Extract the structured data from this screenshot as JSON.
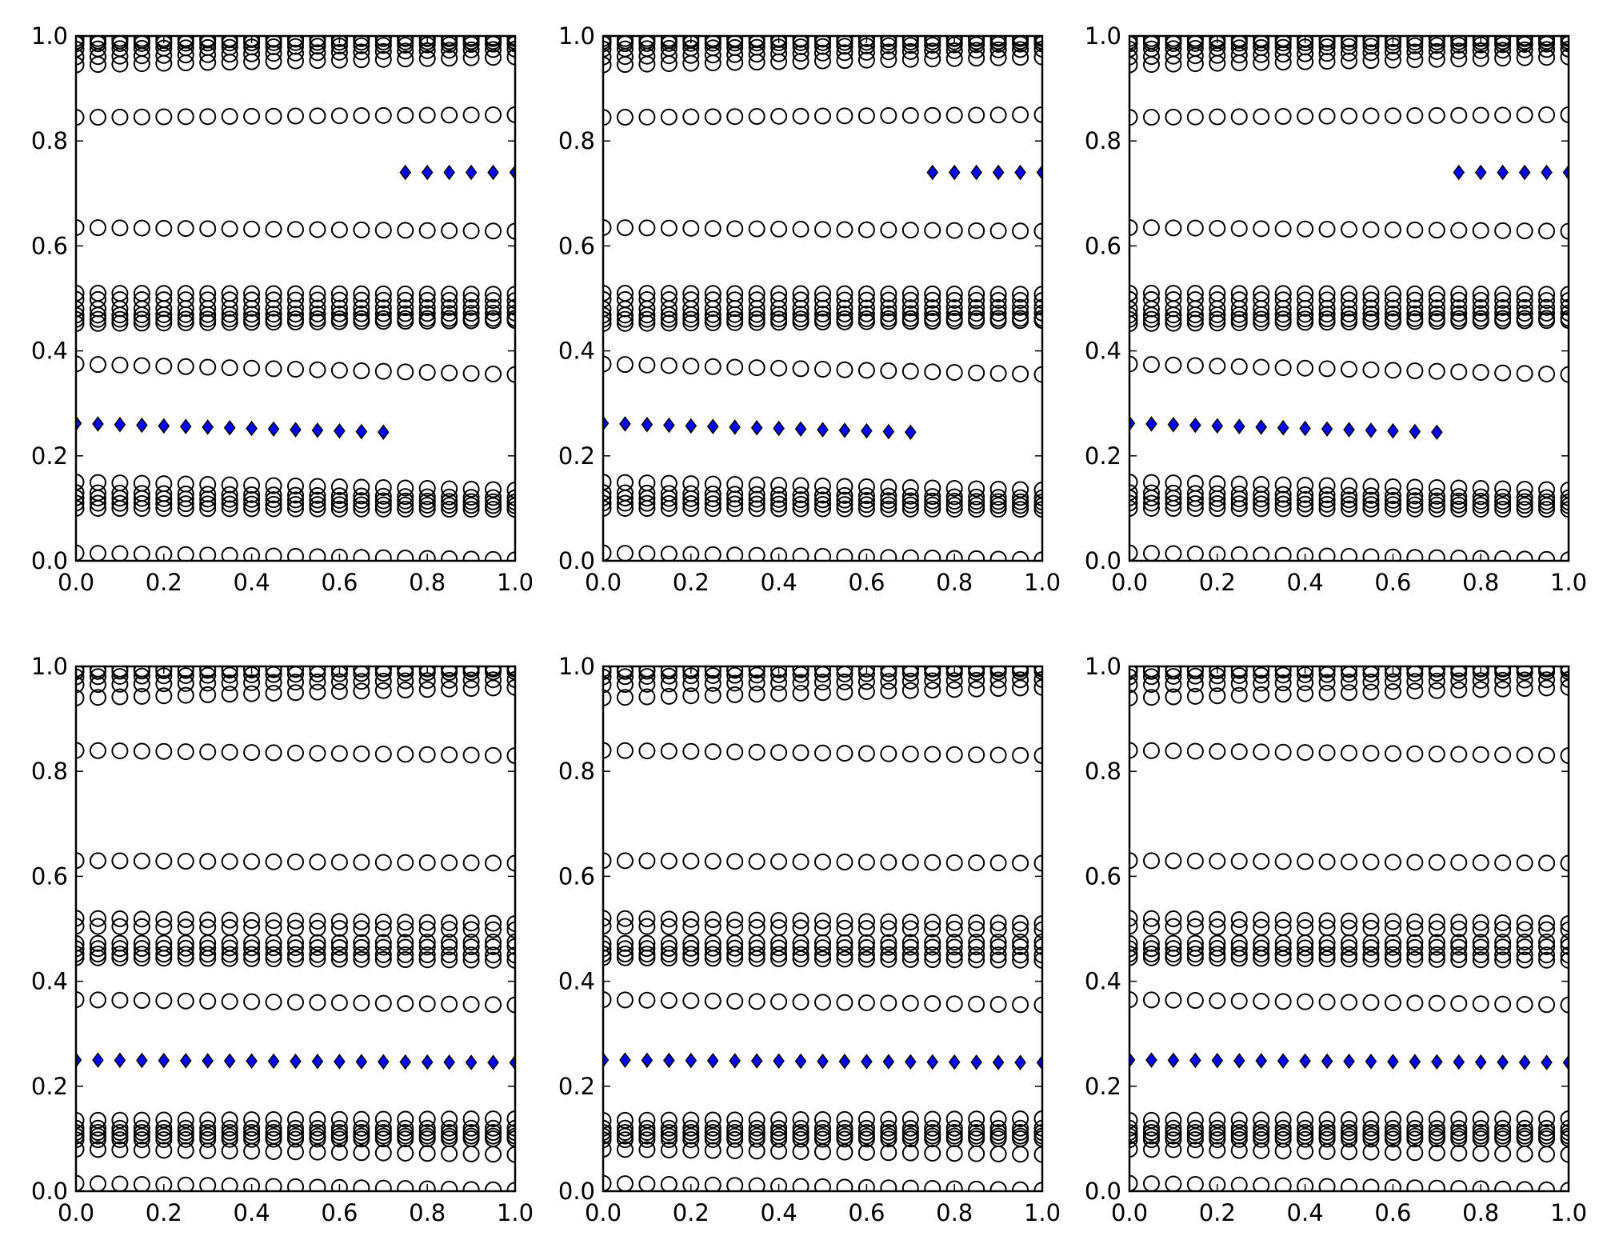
{
  "chart_data": {
    "type": "scatter",
    "subplot_grid": [
      2,
      3
    ],
    "xlim": [
      0,
      1
    ],
    "ylim": [
      0,
      1
    ],
    "xticks": [
      "0.0",
      "0.2",
      "0.4",
      "0.6",
      "0.8",
      "1.0"
    ],
    "yticks": [
      "0.0",
      "0.2",
      "0.4",
      "0.6",
      "0.8",
      "1.0"
    ],
    "grid": false,
    "legend": false,
    "x": [
      0.0,
      0.05,
      0.1,
      0.15,
      0.2,
      0.25,
      0.3,
      0.35,
      0.4,
      0.45,
      0.5,
      0.55,
      0.6,
      0.65,
      0.7,
      0.75,
      0.8,
      0.85,
      0.9,
      0.95,
      1.0
    ],
    "colors": {
      "circle_edge": "#000000",
      "circle_fill": "none",
      "diamond_fill": "#0000ff",
      "diamond_edge": "#000000",
      "axes": "#000000"
    },
    "panels": [
      {
        "row": 0,
        "col": 0,
        "circle_rows": [
          {
            "start": 0.995,
            "end": 0.995
          },
          {
            "start": 0.99,
            "end": 0.998
          },
          {
            "start": 0.985,
            "end": 0.99
          },
          {
            "start": 0.975,
            "end": 0.985
          },
          {
            "start": 0.96,
            "end": 0.975
          },
          {
            "start": 0.945,
            "end": 0.96
          },
          {
            "start": 0.845,
            "end": 0.85
          },
          {
            "start": 0.635,
            "end": 0.628
          },
          {
            "start": 0.51,
            "end": 0.508
          },
          {
            "start": 0.498,
            "end": 0.496
          },
          {
            "start": 0.48,
            "end": 0.483
          },
          {
            "start": 0.468,
            "end": 0.472
          },
          {
            "start": 0.46,
            "end": 0.462
          },
          {
            "start": 0.452,
            "end": 0.458
          },
          {
            "start": 0.375,
            "end": 0.355
          },
          {
            "start": 0.15,
            "end": 0.135
          },
          {
            "start": 0.13,
            "end": 0.12
          },
          {
            "start": 0.12,
            "end": 0.112
          },
          {
            "start": 0.11,
            "end": 0.105
          },
          {
            "start": 0.1,
            "end": 0.098
          },
          {
            "start": 0.015,
            "end": 0.002
          }
        ],
        "diamonds": {
          "low": {
            "x_from": 0.0,
            "x_to": 0.7,
            "start": 0.262,
            "end": 0.245
          },
          "high": {
            "x_from": 0.75,
            "x_to": 1.0,
            "start": 0.74,
            "end": 0.74
          }
        }
      },
      {
        "row": 0,
        "col": 1,
        "circle_rows": [
          {
            "start": 0.995,
            "end": 0.995
          },
          {
            "start": 0.99,
            "end": 0.998
          },
          {
            "start": 0.985,
            "end": 0.99
          },
          {
            "start": 0.975,
            "end": 0.985
          },
          {
            "start": 0.96,
            "end": 0.975
          },
          {
            "start": 0.945,
            "end": 0.96
          },
          {
            "start": 0.845,
            "end": 0.85
          },
          {
            "start": 0.635,
            "end": 0.628
          },
          {
            "start": 0.51,
            "end": 0.508
          },
          {
            "start": 0.498,
            "end": 0.496
          },
          {
            "start": 0.48,
            "end": 0.483
          },
          {
            "start": 0.468,
            "end": 0.472
          },
          {
            "start": 0.46,
            "end": 0.462
          },
          {
            "start": 0.452,
            "end": 0.458
          },
          {
            "start": 0.375,
            "end": 0.355
          },
          {
            "start": 0.15,
            "end": 0.135
          },
          {
            "start": 0.13,
            "end": 0.12
          },
          {
            "start": 0.12,
            "end": 0.112
          },
          {
            "start": 0.11,
            "end": 0.105
          },
          {
            "start": 0.1,
            "end": 0.098
          },
          {
            "start": 0.015,
            "end": 0.002
          }
        ],
        "diamonds": {
          "low": {
            "x_from": 0.0,
            "x_to": 0.7,
            "start": 0.262,
            "end": 0.245
          },
          "high": {
            "x_from": 0.75,
            "x_to": 1.0,
            "start": 0.74,
            "end": 0.74
          }
        }
      },
      {
        "row": 0,
        "col": 2,
        "circle_rows": [
          {
            "start": 0.995,
            "end": 0.995
          },
          {
            "start": 0.99,
            "end": 0.998
          },
          {
            "start": 0.985,
            "end": 0.99
          },
          {
            "start": 0.975,
            "end": 0.985
          },
          {
            "start": 0.96,
            "end": 0.975
          },
          {
            "start": 0.945,
            "end": 0.96
          },
          {
            "start": 0.845,
            "end": 0.85
          },
          {
            "start": 0.635,
            "end": 0.628
          },
          {
            "start": 0.51,
            "end": 0.508
          },
          {
            "start": 0.498,
            "end": 0.496
          },
          {
            "start": 0.48,
            "end": 0.483
          },
          {
            "start": 0.468,
            "end": 0.472
          },
          {
            "start": 0.46,
            "end": 0.462
          },
          {
            "start": 0.452,
            "end": 0.458
          },
          {
            "start": 0.375,
            "end": 0.355
          },
          {
            "start": 0.15,
            "end": 0.135
          },
          {
            "start": 0.13,
            "end": 0.12
          },
          {
            "start": 0.12,
            "end": 0.112
          },
          {
            "start": 0.11,
            "end": 0.105
          },
          {
            "start": 0.1,
            "end": 0.098
          },
          {
            "start": 0.015,
            "end": 0.002
          }
        ],
        "diamonds": {
          "low": {
            "x_from": 0.0,
            "x_to": 0.7,
            "start": 0.262,
            "end": 0.245
          },
          "high": {
            "x_from": 0.75,
            "x_to": 1.0,
            "start": 0.74,
            "end": 0.74
          }
        }
      },
      {
        "row": 1,
        "col": 0,
        "circle_rows": [
          {
            "start": 0.995,
            "end": 0.995
          },
          {
            "start": 0.99,
            "end": 0.998
          },
          {
            "start": 0.98,
            "end": 0.99
          },
          {
            "start": 0.965,
            "end": 0.975
          },
          {
            "start": 0.94,
            "end": 0.96
          },
          {
            "start": 0.84,
            "end": 0.83
          },
          {
            "start": 0.63,
            "end": 0.625
          },
          {
            "start": 0.52,
            "end": 0.51
          },
          {
            "start": 0.505,
            "end": 0.498
          },
          {
            "start": 0.472,
            "end": 0.475
          },
          {
            "start": 0.462,
            "end": 0.466
          },
          {
            "start": 0.452,
            "end": 0.45
          },
          {
            "start": 0.445,
            "end": 0.44
          },
          {
            "start": 0.365,
            "end": 0.355
          },
          {
            "start": 0.135,
            "end": 0.138
          },
          {
            "start": 0.12,
            "end": 0.12
          },
          {
            "start": 0.112,
            "end": 0.112
          },
          {
            "start": 0.105,
            "end": 0.105
          },
          {
            "start": 0.098,
            "end": 0.1
          },
          {
            "start": 0.08,
            "end": 0.07
          },
          {
            "start": 0.015,
            "end": 0.002
          }
        ],
        "diamonds": {
          "all": {
            "x_from": 0.0,
            "x_to": 1.0,
            "start": 0.25,
            "end": 0.245
          }
        }
      },
      {
        "row": 1,
        "col": 1,
        "circle_rows": [
          {
            "start": 0.995,
            "end": 0.995
          },
          {
            "start": 0.99,
            "end": 0.998
          },
          {
            "start": 0.98,
            "end": 0.99
          },
          {
            "start": 0.965,
            "end": 0.975
          },
          {
            "start": 0.94,
            "end": 0.96
          },
          {
            "start": 0.84,
            "end": 0.83
          },
          {
            "start": 0.63,
            "end": 0.625
          },
          {
            "start": 0.52,
            "end": 0.51
          },
          {
            "start": 0.505,
            "end": 0.498
          },
          {
            "start": 0.472,
            "end": 0.475
          },
          {
            "start": 0.462,
            "end": 0.466
          },
          {
            "start": 0.452,
            "end": 0.45
          },
          {
            "start": 0.445,
            "end": 0.44
          },
          {
            "start": 0.365,
            "end": 0.355
          },
          {
            "start": 0.135,
            "end": 0.138
          },
          {
            "start": 0.12,
            "end": 0.12
          },
          {
            "start": 0.112,
            "end": 0.112
          },
          {
            "start": 0.105,
            "end": 0.105
          },
          {
            "start": 0.098,
            "end": 0.1
          },
          {
            "start": 0.08,
            "end": 0.07
          },
          {
            "start": 0.015,
            "end": 0.002
          }
        ],
        "diamonds": {
          "all": {
            "x_from": 0.0,
            "x_to": 1.0,
            "start": 0.25,
            "end": 0.245
          }
        }
      },
      {
        "row": 1,
        "col": 2,
        "circle_rows": [
          {
            "start": 0.995,
            "end": 0.995
          },
          {
            "start": 0.99,
            "end": 0.998
          },
          {
            "start": 0.98,
            "end": 0.99
          },
          {
            "start": 0.965,
            "end": 0.975
          },
          {
            "start": 0.94,
            "end": 0.96
          },
          {
            "start": 0.84,
            "end": 0.83
          },
          {
            "start": 0.63,
            "end": 0.625
          },
          {
            "start": 0.52,
            "end": 0.51
          },
          {
            "start": 0.505,
            "end": 0.498
          },
          {
            "start": 0.472,
            "end": 0.475
          },
          {
            "start": 0.462,
            "end": 0.466
          },
          {
            "start": 0.452,
            "end": 0.45
          },
          {
            "start": 0.445,
            "end": 0.44
          },
          {
            "start": 0.365,
            "end": 0.355
          },
          {
            "start": 0.135,
            "end": 0.138
          },
          {
            "start": 0.12,
            "end": 0.12
          },
          {
            "start": 0.112,
            "end": 0.112
          },
          {
            "start": 0.105,
            "end": 0.105
          },
          {
            "start": 0.098,
            "end": 0.1
          },
          {
            "start": 0.08,
            "end": 0.07
          },
          {
            "start": 0.015,
            "end": 0.002
          }
        ],
        "diamonds": {
          "all": {
            "x_from": 0.0,
            "x_to": 1.0,
            "start": 0.25,
            "end": 0.245
          }
        }
      }
    ]
  }
}
